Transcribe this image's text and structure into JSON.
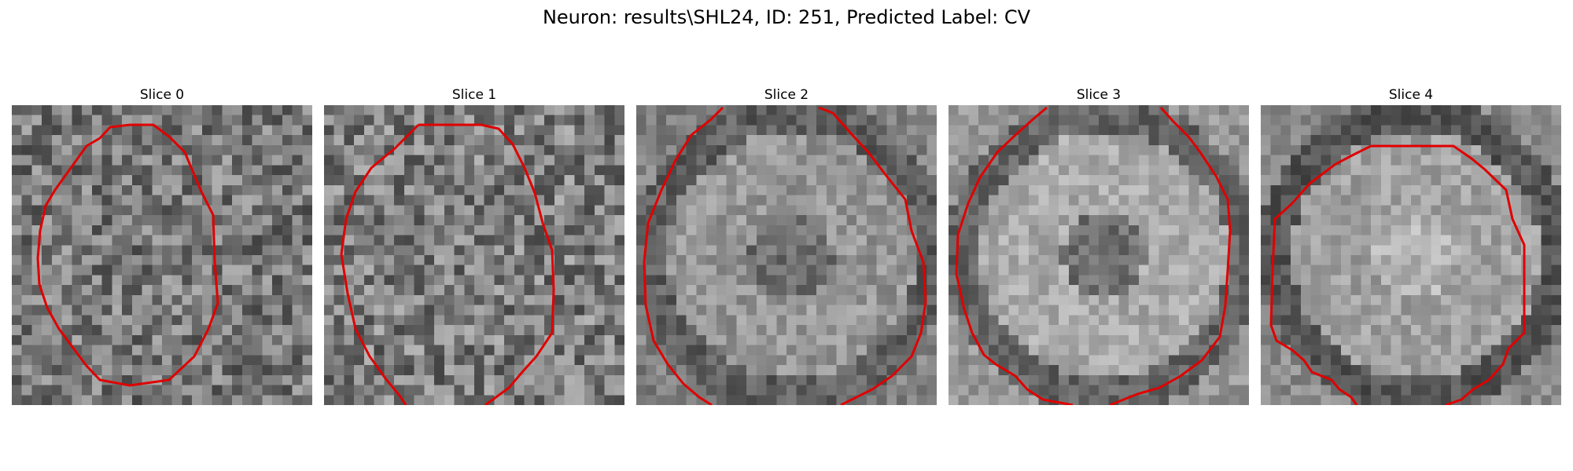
{
  "title": "Neuron: results\\SHL24, ID: 251, Predicted Label: CV",
  "panels": [
    {
      "title": "Slice 0"
    },
    {
      "title": "Slice 1"
    },
    {
      "title": "Slice 2"
    },
    {
      "title": "Slice 3"
    },
    {
      "title": "Slice 4"
    }
  ],
  "colors": {
    "contour": "#e00000",
    "colormap": "grayscale"
  }
}
